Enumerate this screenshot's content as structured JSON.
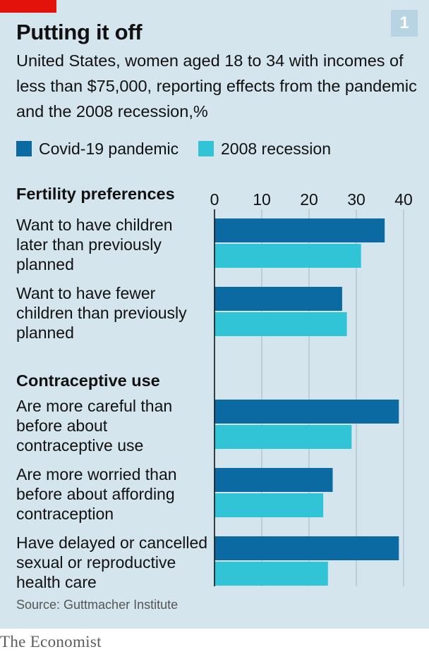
{
  "header": {
    "title": "Putting it off",
    "badge": "1",
    "subtitle": "United States, women aged 18 to 34 with incomes of less than $75,000, reporting effects from the pandemic and the 2008 recession,%"
  },
  "colors": {
    "covid": "#0b6aa1",
    "recession": "#31c3d6",
    "panel": "#d5e5ee",
    "accent": "#e3120b"
  },
  "chart_data": {
    "type": "bar",
    "orientation": "horizontal",
    "xlim": [
      0,
      40
    ],
    "ticks": [
      "0",
      "10",
      "20",
      "30",
      "40"
    ],
    "legend": [
      "Covid-19 pandemic",
      "2008 recession"
    ],
    "groups": [
      {
        "heading": "Fertility preferences",
        "categories": [
          {
            "label": [
              "Want to have children",
              "later than previously",
              "planned"
            ],
            "values": [
              36,
              31
            ]
          },
          {
            "label": [
              "Want to have fewer",
              "children than previously",
              "planned"
            ],
            "values": [
              27,
              28
            ]
          }
        ]
      },
      {
        "heading": "Contraceptive use",
        "categories": [
          {
            "label": [
              "Are more careful than",
              "before about",
              "contraceptive use"
            ],
            "values": [
              39,
              29
            ]
          },
          {
            "label": [
              "Are more worried than",
              "before about affording",
              "contraception"
            ],
            "values": [
              25,
              23
            ]
          },
          {
            "label": [
              "Have delayed or cancelled",
              "sexual or reproductive",
              "health care"
            ],
            "values": [
              39,
              24
            ]
          }
        ]
      }
    ]
  },
  "footer": {
    "source": "Source: Guttmacher Institute",
    "brand": "The Economist"
  }
}
